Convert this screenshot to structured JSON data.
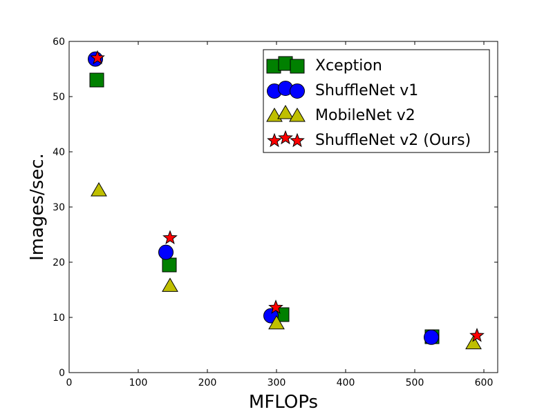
{
  "chart_data": {
    "type": "scatter",
    "title": "",
    "xlabel": "MFLOPs",
    "ylabel": "Images/sec.",
    "xlim": [
      0,
      620
    ],
    "ylim": [
      0,
      60
    ],
    "xticks": [
      0,
      100,
      200,
      300,
      400,
      500,
      600
    ],
    "yticks": [
      0,
      10,
      20,
      30,
      40,
      50,
      60
    ],
    "grid": false,
    "legend_position": "top-right",
    "series": [
      {
        "name": "Xception",
        "marker": "square",
        "color": "#008000",
        "points": [
          [
            40,
            53
          ],
          [
            145,
            19.5
          ],
          [
            308,
            10.5
          ],
          [
            525,
            6.5
          ]
        ]
      },
      {
        "name": "ShuffleNet v1",
        "marker": "circle",
        "color": "#0000ff",
        "points": [
          [
            38,
            56.8
          ],
          [
            140,
            21.8
          ],
          [
            292,
            10.3
          ],
          [
            524,
            6.4
          ]
        ]
      },
      {
        "name": "MobileNet v2",
        "marker": "triangle",
        "color": "#bfbf00",
        "points": [
          [
            43,
            33
          ],
          [
            146,
            15.7
          ],
          [
            300,
            8.9
          ],
          [
            585,
            5.3
          ]
        ]
      },
      {
        "name": "ShuffleNet v2 (Ours)",
        "marker": "star",
        "color": "#ff0000",
        "points": [
          [
            41,
            57
          ],
          [
            146,
            24.4
          ],
          [
            299,
            11.8
          ],
          [
            590,
            6.7
          ]
        ]
      }
    ]
  }
}
